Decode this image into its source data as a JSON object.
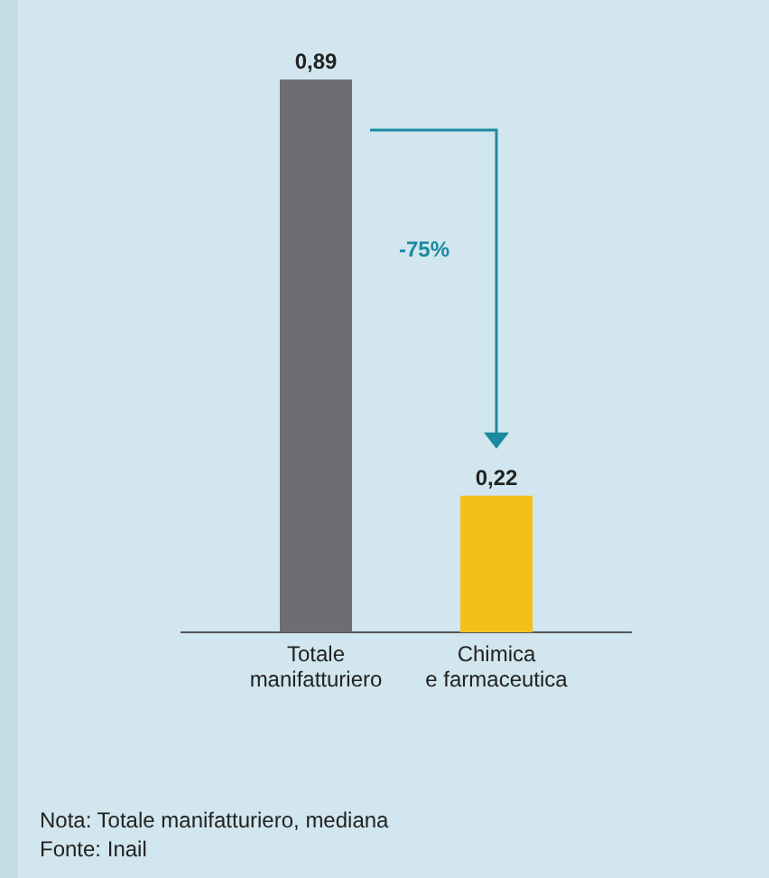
{
  "chart_data": {
    "type": "bar",
    "categories": [
      "Totale\nmanifatturiero",
      "Chimica\ne farmaceutica"
    ],
    "values": [
      0.89,
      0.22
    ],
    "colors": [
      "#6d6e71",
      "#f5bf1a"
    ],
    "data_labels": true,
    "value_labels": [
      "0,89",
      "0,22"
    ],
    "annotations": [
      "-75%",
      "Nota: Totale manifatturiero, mediana",
      "Fonte: Inail"
    ]
  }
}
